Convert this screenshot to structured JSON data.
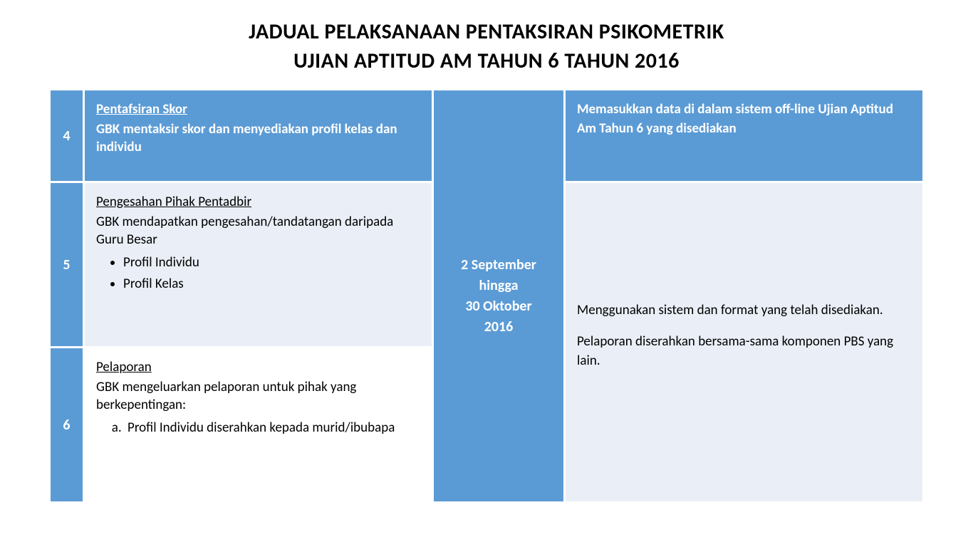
{
  "title": {
    "line1": "JADUAL  PELAKSANAAN PENTAKSIRAN PSIKOMETRIK",
    "line2": "UJIAN APTITUD AM TAHUN 6 TAHUN 2016"
  },
  "colors": {
    "header_blue": "#5b9bd5",
    "light_blue": "#eaeff7",
    "white": "#ffffff",
    "text_black": "#000000"
  },
  "date_cell": {
    "line1": "2 September",
    "line2": "hingga",
    "line3": "30 Oktober",
    "line4": "2016"
  },
  "rows": [
    {
      "num": "4",
      "heading": "Pentafsiran Skor",
      "body": "GBK mentaksir skor dan menyediakan profil kelas dan individu",
      "note": "Memasukkan data di dalam sistem off-line Ujian Aptitud Am Tahun 6 yang disediakan",
      "style": "blue"
    },
    {
      "num": "5",
      "heading": "Pengesahan Pihak Pentadbir",
      "body": "GBK mendapatkan pengesahan/tandatangan daripada Guru Besar",
      "bullets": [
        "Profil Individu",
        "Profil Kelas"
      ],
      "style": "light"
    },
    {
      "num": "6",
      "heading": "Pelaporan",
      "body": "GBK mengeluarkan pelaporan untuk pihak yang berkepentingan:",
      "alpha": [
        "Profil Individu diserahkan kepada murid/ibubapa"
      ],
      "style": "white"
    }
  ],
  "note_block": {
    "p1": "Menggunakan sistem dan format yang telah disediakan.",
    "p2": "Pelaporan diserahkan bersama-sama komponen PBS yang lain."
  },
  "fonts": {
    "title_size": 30,
    "body_size": 19,
    "num_size": 20
  }
}
